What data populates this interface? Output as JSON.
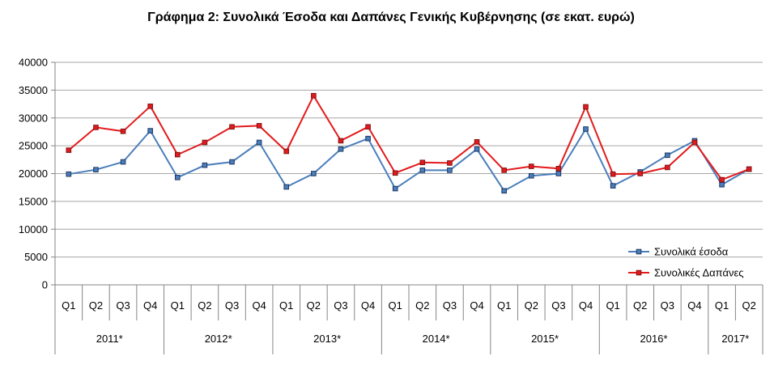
{
  "chart_data": {
    "type": "line",
    "title": "Γράφημα 2: Συνολικά Έσοδα και Δαπάνες Γενικής Κυβέρνησης (σε εκατ. ευρώ)",
    "xlabel": "",
    "ylabel": "",
    "ylim": [
      0,
      40000
    ],
    "yticks": [
      0,
      5000,
      10000,
      15000,
      20000,
      25000,
      30000,
      35000,
      40000
    ],
    "grid": true,
    "legend_position": "bottom-right",
    "years": [
      {
        "label": "2011*",
        "quarters": 4
      },
      {
        "label": "2012*",
        "quarters": 4
      },
      {
        "label": "2013*",
        "quarters": 4
      },
      {
        "label": "2014*",
        "quarters": 4
      },
      {
        "label": "2015*",
        "quarters": 4
      },
      {
        "label": "2016*",
        "quarters": 4
      },
      {
        "label": "2017*",
        "quarters": 2
      }
    ],
    "categories": [
      "Q1",
      "Q2",
      "Q3",
      "Q4",
      "Q1",
      "Q2",
      "Q3",
      "Q4",
      "Q1",
      "Q2",
      "Q3",
      "Q4",
      "Q1",
      "Q2",
      "Q3",
      "Q4",
      "Q1",
      "Q2",
      "Q3",
      "Q4",
      "Q1",
      "Q2",
      "Q3",
      "Q4",
      "Q1",
      "Q2"
    ],
    "series": [
      {
        "name": "Συνολικά έσοδα",
        "color": "#4a7ebb",
        "marker_color": "#1f3864",
        "values": [
          19900,
          20700,
          22100,
          27700,
          19300,
          21500,
          22100,
          25600,
          17600,
          20000,
          24400,
          26300,
          17300,
          20600,
          20600,
          24400,
          16900,
          19600,
          20000,
          28000,
          17800,
          20300,
          23300,
          25900,
          18000,
          20800
        ]
      },
      {
        "name": "Συνολικές Δαπάνες",
        "color": "#e31a1c",
        "marker_color": "#7f1417",
        "values": [
          24200,
          28300,
          27600,
          32100,
          23400,
          25600,
          28400,
          28600,
          24000,
          34000,
          25900,
          28400,
          20100,
          22000,
          21900,
          25700,
          20600,
          21300,
          20900,
          32000,
          19900,
          20000,
          21100,
          25600,
          18900,
          20800
        ]
      }
    ]
  }
}
